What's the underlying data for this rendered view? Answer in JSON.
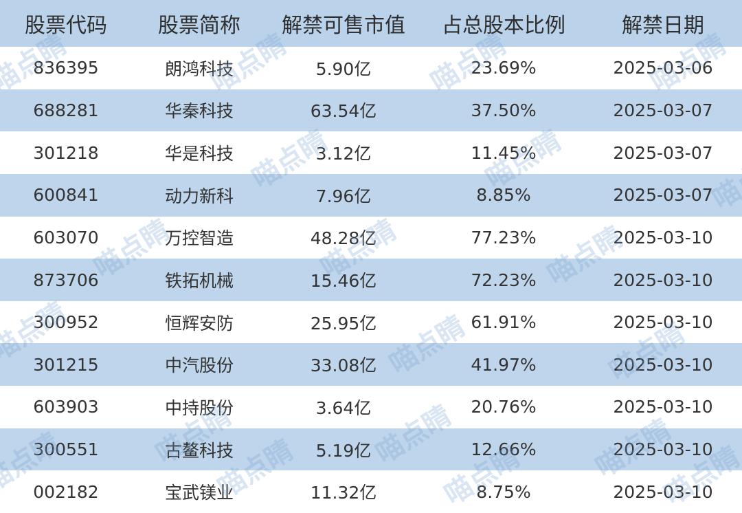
{
  "table": {
    "header": [
      "股票代码",
      "股票简称",
      "解禁可售市值",
      "占总股本比例",
      "解禁日期"
    ],
    "rows": [
      [
        "836395",
        "朗鸿科技",
        "5.90亿",
        "23.69%",
        "2025-03-06"
      ],
      [
        "688281",
        "华秦科技",
        "63.54亿",
        "37.50%",
        "2025-03-07"
      ],
      [
        "301218",
        "华是科技",
        "3.12亿",
        "11.45%",
        "2025-03-07"
      ],
      [
        "600841",
        "动力新科",
        "7.96亿",
        "8.85%",
        "2025-03-07"
      ],
      [
        "603070",
        "万控智造",
        "48.28亿",
        "77.23%",
        "2025-03-10"
      ],
      [
        "873706",
        "铁拓机械",
        "15.46亿",
        "72.23%",
        "2025-03-10"
      ],
      [
        "300952",
        "恒辉安防",
        "25.95亿",
        "61.91%",
        "2025-03-10"
      ],
      [
        "301215",
        "中汽股份",
        "33.08亿",
        "41.97%",
        "2025-03-10"
      ],
      [
        "603903",
        "中持股份",
        "3.64亿",
        "20.76%",
        "2025-03-10"
      ],
      [
        "300551",
        "古鳌科技",
        "5.19亿",
        "12.66%",
        "2025-03-10"
      ],
      [
        "002182",
        "宝武镁业",
        "11.32亿",
        "8.75%",
        "2025-03-10"
      ]
    ]
  },
  "watermark": "喵点睛"
}
